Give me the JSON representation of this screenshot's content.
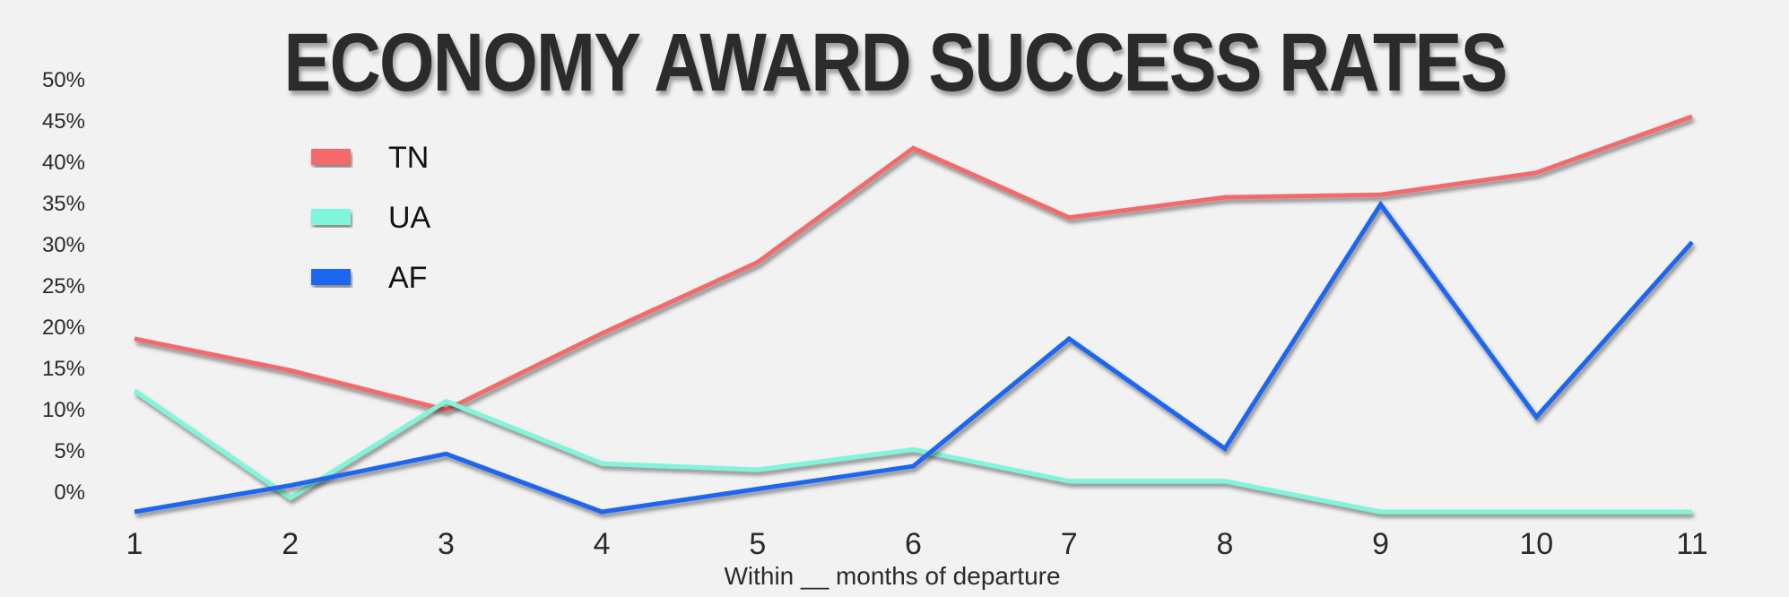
{
  "chart_data": {
    "type": "line",
    "title": "ECONOMY AWARD SUCCESS RATES",
    "xlabel": "Within __ months of departure",
    "ylabel": "",
    "x": [
      1,
      2,
      3,
      4,
      5,
      6,
      7,
      8,
      9,
      10,
      11
    ],
    "y_ticks": [
      "0%",
      "5%",
      "10%",
      "15%",
      "20%",
      "25%",
      "30%",
      "35%",
      "40%",
      "45%",
      "50%"
    ],
    "ylim": [
      0,
      50
    ],
    "grid": false,
    "legend_position": "top-left",
    "series": [
      {
        "name": "TN",
        "color": "#f26b6b",
        "values": [
          19.7,
          16.1,
          11.6,
          20.3,
          28.4,
          41.4,
          33.5,
          35.8,
          36.1,
          38.6,
          45.0
        ]
      },
      {
        "name": "UA",
        "color": "#7ff5d9",
        "values": [
          13.8,
          1.6,
          12.6,
          5.5,
          4.8,
          7.1,
          3.5,
          3.5,
          0,
          0,
          0
        ]
      },
      {
        "name": "AF",
        "color": "#1a66f0",
        "values": [
          0,
          3.0,
          6.6,
          0,
          2.6,
          5.2,
          19.7,
          7.2,
          35.0,
          10.8,
          30.7
        ]
      }
    ]
  }
}
